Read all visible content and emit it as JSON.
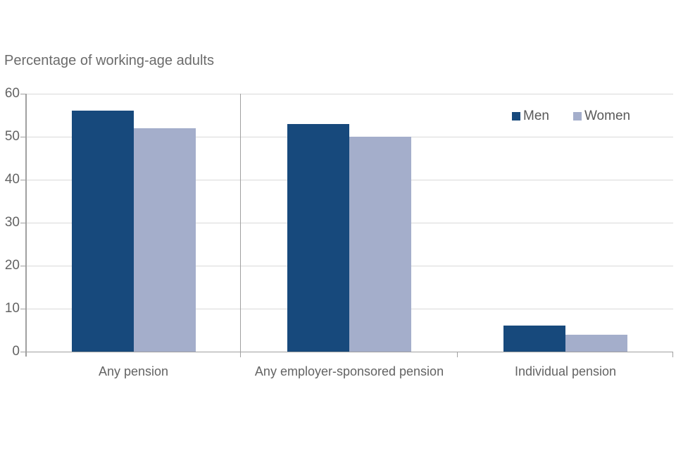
{
  "chart_data": {
    "type": "bar",
    "title": "Percentage of working-age adults",
    "categories": [
      "Any pension",
      "Any employer-sponsored pension",
      "Individual pension"
    ],
    "series": [
      {
        "name": "Men",
        "color": "#17497c",
        "values": [
          56,
          53,
          6
        ]
      },
      {
        "name": "Women",
        "color": "#a4aecb",
        "values": [
          52,
          50,
          4
        ]
      }
    ],
    "xlabel": "",
    "ylabel": "",
    "ylim": [
      0,
      60
    ],
    "yticks": [
      0,
      10,
      20,
      30,
      40,
      50,
      60
    ],
    "grid": true,
    "legend_position": "top-right-inside"
  },
  "style_colors": {
    "background": "#ffffff",
    "gridline": "#d9d9d9",
    "axis": "#a0a0a0",
    "axis_text": "#636363",
    "title_text": "#6b6b6b"
  }
}
